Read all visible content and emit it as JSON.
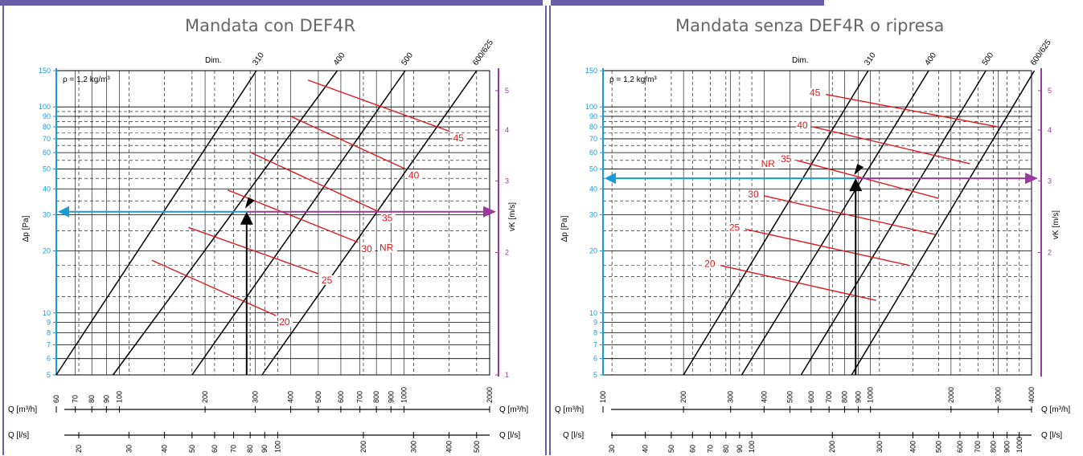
{
  "chart_data": [
    {
      "type": "line",
      "title": "Mandata con DEF4R",
      "density_label": "ρ = 1,2 kg/m³",
      "dim_label": "Dim.",
      "ylabel_left": "Δp [Pa]",
      "ylabel_right": "vK [m/s]",
      "xlabel_m3h": "Q [m³/h]",
      "xlabel_ls": "Q [l/s]",
      "y_scale": "log",
      "ylim": [
        5,
        150
      ],
      "y_ticks": [
        5,
        6,
        7,
        8,
        9,
        10,
        20,
        30,
        40,
        50,
        60,
        70,
        80,
        90,
        100,
        150
      ],
      "xlim_m3h": [
        60,
        2000
      ],
      "x_scale": "log",
      "x_ticks_m3h": [
        60,
        70,
        80,
        90,
        100,
        200,
        300,
        400,
        500,
        600,
        700,
        800,
        900,
        1000,
        2000
      ],
      "x_ticks_ls": [
        20,
        30,
        40,
        50,
        60,
        70,
        80,
        90,
        100,
        200,
        300,
        400,
        500
      ],
      "v_ticks": [
        1,
        2,
        3,
        4,
        5
      ],
      "dims": [
        {
          "name": "310",
          "points": [
            [
              60,
              5
            ],
            [
              303,
              150
            ]
          ]
        },
        {
          "name": "400",
          "points": [
            [
              95,
              5
            ],
            [
              583,
              150
            ]
          ]
        },
        {
          "name": "500",
          "points": [
            [
              180,
              5
            ],
            [
              1010,
              150
            ]
          ]
        },
        {
          "name": "600/625",
          "points": [
            [
              317,
              5
            ],
            [
              1800,
              150
            ]
          ]
        }
      ],
      "nr_label": "NR",
      "nr_curves": [
        {
          "name": "20",
          "points": [
            [
              130,
              18
            ],
            [
              355,
              9.7
            ]
          ]
        },
        {
          "name": "25",
          "points": [
            [
              175,
              26
            ],
            [
              500,
              15.5
            ]
          ]
        },
        {
          "name": "30",
          "points": [
            [
              240,
              39.5
            ],
            [
              690,
              22
            ]
          ]
        },
        {
          "name": "35",
          "points": [
            [
              290,
              60
            ],
            [
              815,
              31
            ]
          ]
        },
        {
          "name": "40",
          "points": [
            [
              400,
              90
            ],
            [
              1010,
              50
            ]
          ]
        },
        {
          "name": "45",
          "points": [
            [
              460,
              135
            ],
            [
              1450,
              76
            ]
          ]
        }
      ],
      "operating_point": {
        "q_m3h": 280,
        "dp": 31,
        "v": 2.5
      },
      "colors": {
        "dp": "#1a9ad6",
        "v": "#9b3a9a",
        "nr": "#e0191e",
        "grid": "#000000"
      }
    },
    {
      "type": "line",
      "title": "Mandata senza DEF4R o ripresa",
      "density_label": "ρ = 1,2 kg/m³",
      "dim_label": "Dim.",
      "ylabel_left": "Δp [Pa]",
      "ylabel_right": "vK [m/s]",
      "xlabel_m3h": "Q [m³/h]",
      "xlabel_ls": "Q [l/s]",
      "y_scale": "log",
      "ylim": [
        5,
        150
      ],
      "y_ticks": [
        5,
        6,
        7,
        8,
        9,
        10,
        20,
        30,
        40,
        50,
        60,
        70,
        80,
        90,
        100,
        150
      ],
      "xlim_m3h": [
        100,
        4000
      ],
      "x_scale": "log",
      "x_ticks_m3h": [
        100,
        200,
        300,
        400,
        500,
        600,
        700,
        800,
        900,
        1000,
        2000,
        3000,
        4000
      ],
      "x_ticks_ls": [
        30,
        40,
        50,
        60,
        70,
        80,
        90,
        100,
        200,
        300,
        400,
        500,
        600,
        700,
        800,
        900,
        1000
      ],
      "v_ticks": [
        2,
        3,
        4,
        5
      ],
      "dims": [
        {
          "name": "310",
          "points": [
            [
              200,
              5
            ],
            [
              980,
              150
            ]
          ]
        },
        {
          "name": "400",
          "points": [
            [
              330,
              5
            ],
            [
              1650,
              150
            ]
          ]
        },
        {
          "name": "500",
          "points": [
            [
              550,
              5
            ],
            [
              2700,
              150
            ]
          ]
        },
        {
          "name": "600/625",
          "points": [
            [
              850,
              5
            ],
            [
              4100,
              150
            ]
          ]
        }
      ],
      "nr_label": "NR",
      "nr_curves": [
        {
          "name": "20",
          "points": [
            [
              275,
              17
            ],
            [
              1050,
              11.5
            ]
          ]
        },
        {
          "name": "25",
          "points": [
            [
              340,
              25.5
            ],
            [
              1400,
              17
            ]
          ]
        },
        {
          "name": "30",
          "points": [
            [
              400,
              37
            ],
            [
              1750,
              24
            ]
          ]
        },
        {
          "name": "35",
          "points": [
            [
              530,
              55
            ],
            [
              1800,
              36
            ]
          ]
        },
        {
          "name": "40",
          "points": [
            [
              610,
              80
            ],
            [
              2350,
              53
            ]
          ]
        },
        {
          "name": "45",
          "points": [
            [
              680,
              115
            ],
            [
              3000,
              80
            ]
          ]
        }
      ],
      "operating_point": {
        "q_m3h": 880,
        "dp": 45,
        "v": 3.4
      },
      "colors": {
        "dp": "#1a9ad6",
        "v": "#9b3a9a",
        "nr": "#e0191e",
        "grid": "#000000"
      }
    }
  ]
}
